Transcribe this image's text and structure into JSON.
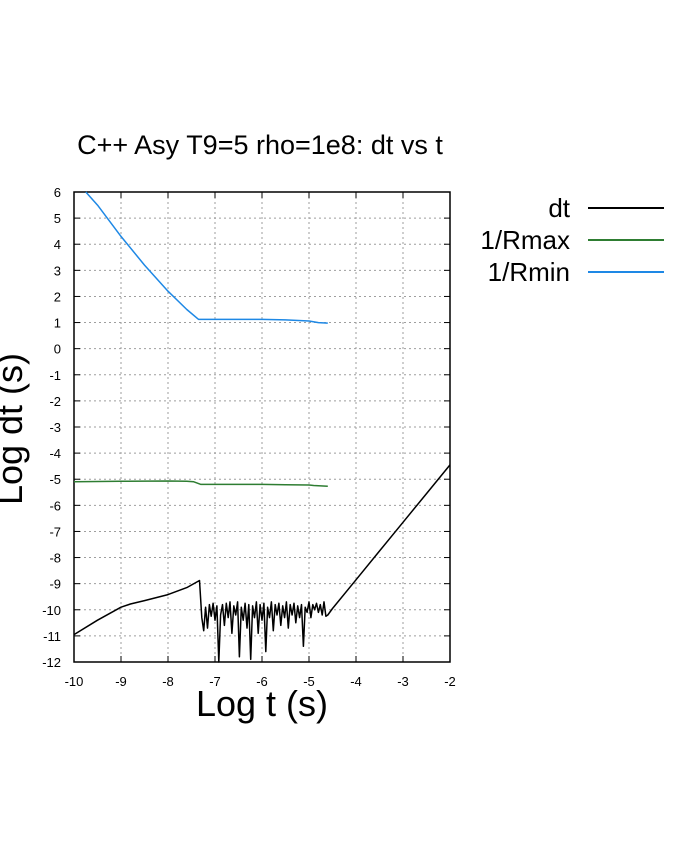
{
  "chart_data": {
    "type": "line",
    "title": "C++ Asy T9=5 rho=1e8: dt vs t",
    "xlabel": "Log t (s)",
    "ylabel": "Log dt (s)",
    "xlim": [
      -10,
      -2
    ],
    "ylim": [
      -12,
      6
    ],
    "xticks": [
      "-10",
      "-9",
      "-8",
      "-7",
      "-6",
      "-5",
      "-4",
      "-3",
      "-2"
    ],
    "yticks": [
      "6",
      "5",
      "4",
      "3",
      "2",
      "1",
      "0",
      "-1",
      "-2",
      "-3",
      "-4",
      "-5",
      "-6",
      "-7",
      "-8",
      "-9",
      "-10",
      "-11",
      "-12"
    ],
    "grid": true,
    "legend_position": "outside-right-top",
    "series": [
      {
        "name": "dt",
        "color": "#000000",
        "points": [
          [
            -10.0,
            -10.95
          ],
          [
            -9.5,
            -10.4
          ],
          [
            -9.0,
            -9.9
          ],
          [
            -8.8,
            -9.78
          ],
          [
            -8.5,
            -9.65
          ],
          [
            -8.0,
            -9.42
          ],
          [
            -7.6,
            -9.15
          ],
          [
            -7.33,
            -8.88
          ],
          [
            -7.28,
            -10.3
          ],
          [
            -7.24,
            -10.8
          ],
          [
            -7.2,
            -9.9
          ],
          [
            -7.16,
            -10.7
          ],
          [
            -7.12,
            -9.8
          ],
          [
            -7.08,
            -10.25
          ],
          [
            -7.04,
            -9.75
          ],
          [
            -7.0,
            -10.4
          ],
          [
            -6.96,
            -9.85
          ],
          [
            -6.92,
            -12.1
          ],
          [
            -6.88,
            -10.2
          ],
          [
            -6.84,
            -9.8
          ],
          [
            -6.8,
            -10.6
          ],
          [
            -6.76,
            -9.75
          ],
          [
            -6.72,
            -10.3
          ],
          [
            -6.68,
            -9.7
          ],
          [
            -6.64,
            -10.9
          ],
          [
            -6.6,
            -9.85
          ],
          [
            -6.56,
            -10.2
          ],
          [
            -6.52,
            -9.7
          ],
          [
            -6.48,
            -11.8
          ],
          [
            -6.44,
            -9.9
          ],
          [
            -6.4,
            -10.4
          ],
          [
            -6.36,
            -9.75
          ],
          [
            -6.32,
            -10.7
          ],
          [
            -6.28,
            -9.8
          ],
          [
            -6.24,
            -11.9
          ],
          [
            -6.2,
            -9.85
          ],
          [
            -6.16,
            -10.3
          ],
          [
            -6.12,
            -9.7
          ],
          [
            -6.08,
            -10.9
          ],
          [
            -6.04,
            -9.8
          ],
          [
            -6.0,
            -10.4
          ],
          [
            -5.96,
            -9.75
          ],
          [
            -5.92,
            -11.6
          ],
          [
            -5.88,
            -9.9
          ],
          [
            -5.84,
            -10.3
          ],
          [
            -5.8,
            -9.7
          ],
          [
            -5.76,
            -10.8
          ],
          [
            -5.72,
            -9.8
          ],
          [
            -5.68,
            -10.2
          ],
          [
            -5.64,
            -9.75
          ],
          [
            -5.6,
            -10.6
          ],
          [
            -5.56,
            -9.85
          ],
          [
            -5.52,
            -10.3
          ],
          [
            -5.48,
            -9.7
          ],
          [
            -5.44,
            -10.7
          ],
          [
            -5.4,
            -9.8
          ],
          [
            -5.36,
            -10.2
          ],
          [
            -5.32,
            -9.75
          ],
          [
            -5.28,
            -10.5
          ],
          [
            -5.24,
            -9.85
          ],
          [
            -5.2,
            -10.3
          ],
          [
            -5.16,
            -9.8
          ],
          [
            -5.12,
            -11.4
          ],
          [
            -5.08,
            -9.9
          ],
          [
            -5.04,
            -10.1
          ],
          [
            -5.0,
            -9.7
          ],
          [
            -4.96,
            -10.3
          ],
          [
            -4.92,
            -9.8
          ],
          [
            -4.88,
            -10.0
          ],
          [
            -4.84,
            -9.75
          ],
          [
            -4.8,
            -10.1
          ],
          [
            -4.76,
            -9.8
          ],
          [
            -4.72,
            -10.2
          ],
          [
            -4.68,
            -9.7
          ],
          [
            -4.64,
            -10.25
          ],
          [
            -4.6,
            -10.2
          ],
          [
            -4.5,
            -9.95
          ],
          [
            -4.0,
            -8.85
          ],
          [
            -3.5,
            -7.75
          ],
          [
            -3.0,
            -6.65
          ],
          [
            -2.5,
            -5.55
          ],
          [
            -2.0,
            -4.45
          ]
        ]
      },
      {
        "name": "1/Rmax",
        "color": "#2e7d32",
        "points": [
          [
            -10.0,
            -5.1
          ],
          [
            -9.0,
            -5.08
          ],
          [
            -8.0,
            -5.07
          ],
          [
            -7.6,
            -5.08
          ],
          [
            -7.45,
            -5.1
          ],
          [
            -7.3,
            -5.2
          ],
          [
            -6.5,
            -5.2
          ],
          [
            -6.0,
            -5.2
          ],
          [
            -5.5,
            -5.21
          ],
          [
            -5.0,
            -5.22
          ],
          [
            -4.9,
            -5.24
          ],
          [
            -4.6,
            -5.27
          ]
        ]
      },
      {
        "name": "1/Rmin",
        "color": "#1e88e5",
        "points": [
          [
            -9.75,
            6.0
          ],
          [
            -9.5,
            5.5
          ],
          [
            -9.0,
            4.3
          ],
          [
            -8.5,
            3.2
          ],
          [
            -8.0,
            2.2
          ],
          [
            -7.6,
            1.5
          ],
          [
            -7.35,
            1.12
          ],
          [
            -7.0,
            1.12
          ],
          [
            -6.5,
            1.12
          ],
          [
            -6.0,
            1.12
          ],
          [
            -5.5,
            1.1
          ],
          [
            -5.0,
            1.06
          ],
          [
            -4.8,
            1.0
          ],
          [
            -4.6,
            0.98
          ]
        ]
      }
    ]
  }
}
